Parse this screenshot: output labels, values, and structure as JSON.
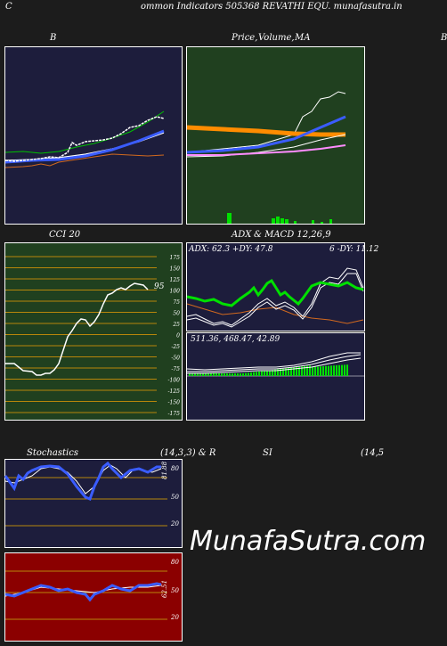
{
  "header": {
    "left_letter": "C",
    "title": "ommon  Indicators 505368  REVATHI EQU. munafasutra.in"
  },
  "panels": {
    "bollinger": {
      "label_left": "B",
      "colors": {
        "bg": "#1d1d3c"
      }
    },
    "price_ma": {
      "label_a": "Price,",
      "label_b": "Volume,",
      "label_c": "MA",
      "label_right": "B",
      "colors": {
        "bg": "#20401f"
      }
    },
    "cci": {
      "label": "CCI 20",
      "current": "95",
      "axis_ticks": [
        "175",
        "150",
        "125",
        "100",
        "75",
        "50",
        "25",
        "0",
        "-25",
        "-50",
        "-75",
        "-100",
        "-125",
        "-150",
        "-175"
      ],
      "colors": {
        "bg": "#20401f",
        "grid": "#b8860b"
      }
    },
    "adx": {
      "label_a": "ADX",
      "label_b": "& MACD 12,26,9",
      "values": "ADX: 62.3 +DY: 47.8",
      "values_right": "6  -DY: 11.12",
      "colors": {
        "bg": "#1d1d3c"
      }
    },
    "macd": {
      "values": "511.36,  468.47,  42.89",
      "colors": {
        "bg": "#1d1d3c"
      }
    },
    "stochastics": {
      "label": "Stochastics",
      "params": "(14,3,3) & R",
      "current": "81.88",
      "levels": [
        "80",
        "50",
        "20"
      ],
      "colors": {
        "bg": "#1d1d3c"
      }
    },
    "rsi": {
      "label": "SI",
      "params": "(14,5",
      "current": "62.51",
      "levels": [
        "80",
        "50",
        "20"
      ],
      "colors": {
        "bg": "#8b0000"
      }
    }
  },
  "watermark": "MunafaSutra.com"
}
